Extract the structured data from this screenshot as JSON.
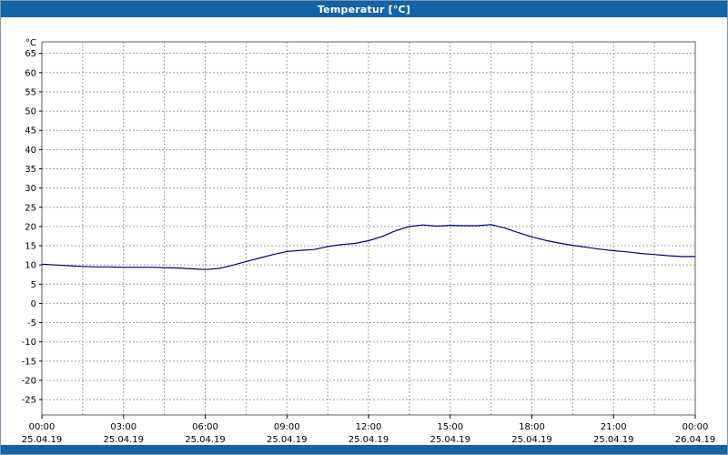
{
  "window": {
    "title": "Temperatur [°C]"
  },
  "colors": {
    "titlebar": "#1463a6",
    "bottombar": "#1463a6",
    "plot_background": "#ffffff",
    "grid": "#98a498",
    "axis": "#606060",
    "line": "#000080",
    "tick_text": "#000000"
  },
  "chart_data": {
    "type": "line",
    "title": "Temperatur [°C]",
    "ylabel": "°C",
    "xlabel": "",
    "ylim": [
      -29,
      68
    ],
    "xlim_hours": [
      0,
      24
    ],
    "grid": true,
    "y_tick_step": 5,
    "y_ticks": [
      65,
      60,
      55,
      50,
      45,
      40,
      35,
      30,
      25,
      20,
      15,
      10,
      5,
      0,
      -5,
      -10,
      -15,
      -20,
      -25
    ],
    "x_minor_interval_hours": 1.5,
    "x_ticks": [
      {
        "hour": 0,
        "label": "00:00",
        "date": "25.04.19"
      },
      {
        "hour": 3,
        "label": "03:00",
        "date": "25.04.19"
      },
      {
        "hour": 6,
        "label": "06:00",
        "date": "25.04.19"
      },
      {
        "hour": 9,
        "label": "09:00",
        "date": "25.04.19"
      },
      {
        "hour": 12,
        "label": "12:00",
        "date": "25.04.19"
      },
      {
        "hour": 15,
        "label": "15:00",
        "date": "25.04.19"
      },
      {
        "hour": 18,
        "label": "18:00",
        "date": "25.04.19"
      },
      {
        "hour": 21,
        "label": "21:00",
        "date": "25.04.19"
      },
      {
        "hour": 24,
        "label": "00:00",
        "date": "26.04.19"
      }
    ],
    "series": [
      {
        "name": "Temperatur",
        "unit": "°C",
        "x_hours": [
          0,
          0.5,
          1,
          1.5,
          2,
          2.5,
          3,
          3.5,
          4,
          4.5,
          5,
          5.5,
          6,
          6.5,
          7,
          7.5,
          8,
          8.5,
          9,
          9.5,
          10,
          10.5,
          11,
          11.5,
          12,
          12.5,
          13,
          13.5,
          14,
          14.5,
          15,
          15.5,
          16,
          16.5,
          17,
          17.5,
          18,
          18.5,
          19,
          19.5,
          20,
          20.5,
          21,
          21.5,
          22,
          22.5,
          23,
          23.5,
          24
        ],
        "values": [
          10.2,
          10.0,
          9.8,
          9.6,
          9.5,
          9.5,
          9.4,
          9.4,
          9.4,
          9.3,
          9.2,
          9.0,
          8.8,
          9.1,
          9.9,
          10.9,
          11.8,
          12.7,
          13.5,
          13.8,
          14.0,
          14.8,
          15.3,
          15.6,
          16.3,
          17.4,
          18.9,
          20.0,
          20.4,
          20.1,
          20.3,
          20.2,
          20.2,
          20.5,
          19.6,
          18.4,
          17.3,
          16.4,
          15.7,
          15.1,
          14.6,
          14.1,
          13.7,
          13.4,
          13.0,
          12.7,
          12.4,
          12.2,
          12.2
        ]
      }
    ]
  }
}
